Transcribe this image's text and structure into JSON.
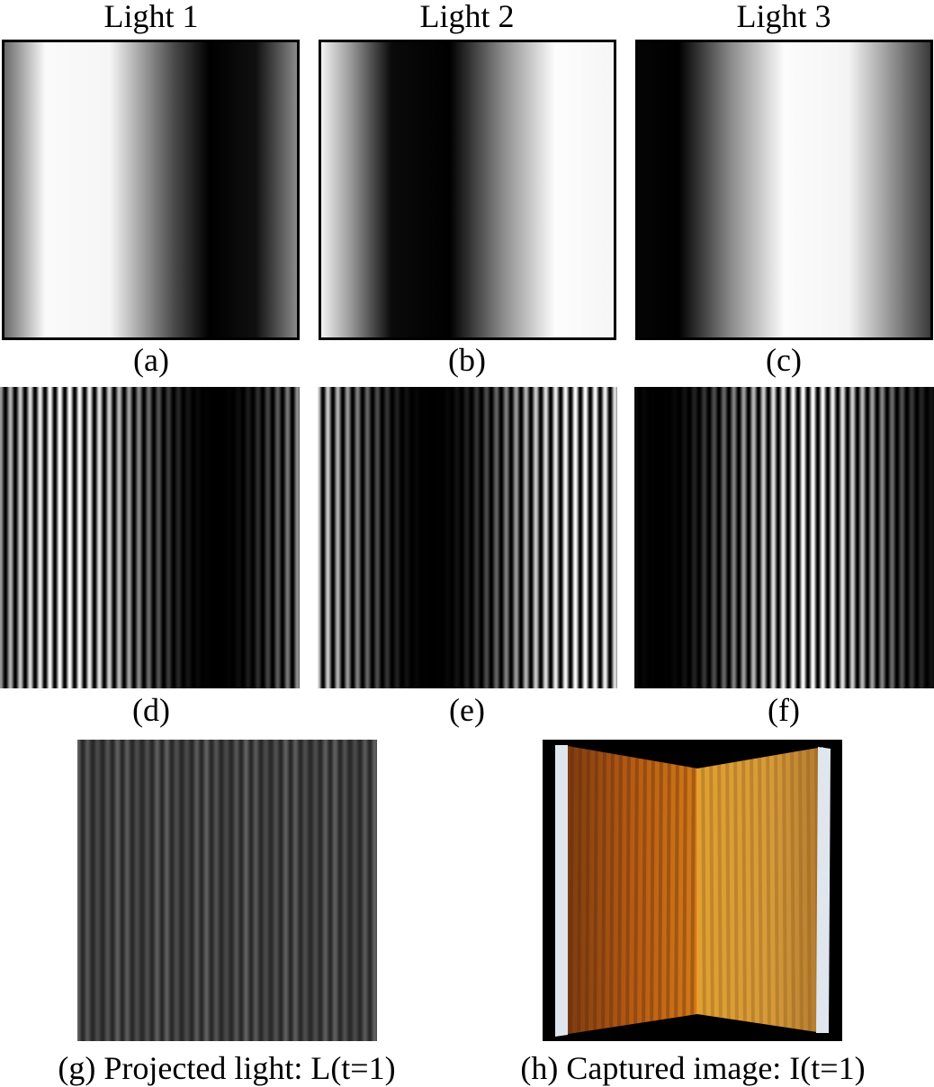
{
  "headers": {
    "light1": "Light 1",
    "light2": "Light 2",
    "light3": "Light 3"
  },
  "captions": {
    "a": "(a)",
    "b": "(b)",
    "c": "(c)",
    "d": "(d)",
    "e": "(e)",
    "f": "(f)",
    "g": "(g) Projected light: L(t=1)",
    "h": "(h) Captured image: I(t=1)"
  },
  "colors": {
    "black": "#000000",
    "white": "#ffffff",
    "orange_dark": "#a84e10",
    "orange_light": "#e6a53a",
    "frame_white": "#dfe6ee"
  }
}
